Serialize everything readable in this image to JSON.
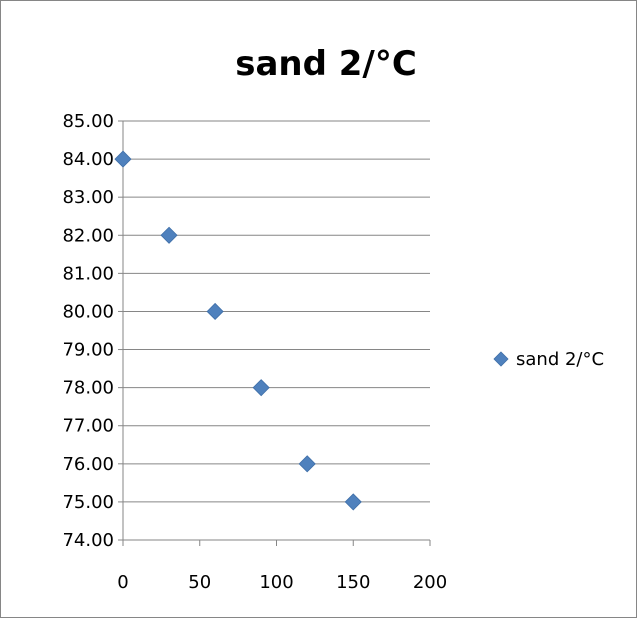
{
  "chart_data": {
    "type": "scatter",
    "title": "sand 2/°C",
    "xlabel": "",
    "ylabel": "",
    "xlim": [
      0,
      200
    ],
    "ylim": [
      74,
      85
    ],
    "xticks": [
      "0",
      "50",
      "100",
      "150",
      "200"
    ],
    "yticks": [
      "74.00",
      "75.00",
      "76.00",
      "77.00",
      "78.00",
      "79.00",
      "80.00",
      "81.00",
      "82.00",
      "83.00",
      "84.00",
      "85.00"
    ],
    "grid": "horizontal",
    "legend_position": "right",
    "series": [
      {
        "name": "sand 2/°C",
        "color": "#4f81bd",
        "marker": "diamond",
        "points": [
          {
            "x": 0,
            "y": 84
          },
          {
            "x": 30,
            "y": 82
          },
          {
            "x": 60,
            "y": 80
          },
          {
            "x": 90,
            "y": 78
          },
          {
            "x": 120,
            "y": 76
          },
          {
            "x": 150,
            "y": 75
          }
        ]
      }
    ]
  }
}
